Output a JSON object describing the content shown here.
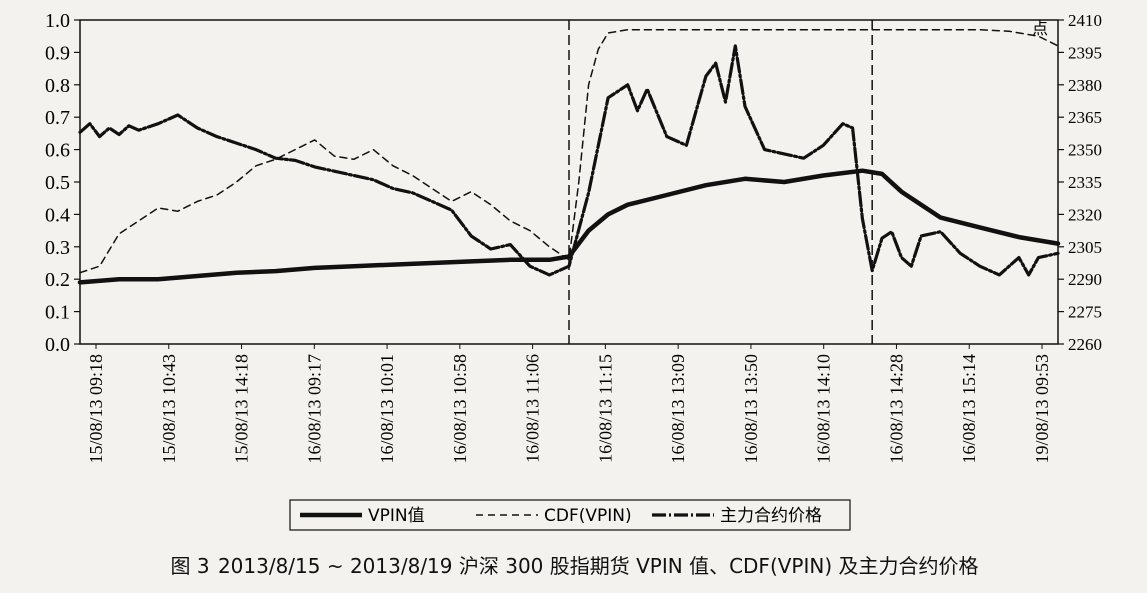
{
  "chart_data": {
    "type": "line",
    "caption": {
      "fig_no": "图 3",
      "text": "2013/8/15 ~ 2013/8/19 沪深 300 股指期货 VPIN 值、CDF(VPIN) 及主力合约价格"
    },
    "left_axis": {
      "ylim": [
        0.0,
        1.0
      ],
      "ticks": [
        "0.0",
        "0.1",
        "0.2",
        "0.3",
        "0.4",
        "0.5",
        "0.6",
        "0.7",
        "0.8",
        "0.9",
        "1.0"
      ]
    },
    "right_axis": {
      "unit": "点",
      "ylim": [
        2260,
        2410
      ],
      "ticks": [
        "2260",
        "2275",
        "2290",
        "2305",
        "2320",
        "2335",
        "2350",
        "2365",
        "2380",
        "2395",
        "2410"
      ]
    },
    "x_tick_labels": [
      "15/08/13 09:18",
      "15/08/13 10:43",
      "15/08/13 14:18",
      "16/08/13 09:17",
      "16/08/13 10:01",
      "16/08/13 10:58",
      "16/08/13 11:06",
      "16/08/13 11:15",
      "16/08/13 13:09",
      "16/08/13 13:50",
      "16/08/13 14:10",
      "16/08/13 14:28",
      "16/08/13 15:14",
      "19/08/13 09:53"
    ],
    "x_range": [
      0,
      100
    ],
    "vlines": [
      50,
      81
    ],
    "legend": {
      "position": "bottom-center",
      "entries": [
        "VPIN值",
        "CDF(VPIN)",
        "主力合约价格"
      ]
    },
    "series": [
      {
        "name": "VPIN值",
        "axis": "left",
        "style": "solid-thick",
        "x": [
          0,
          4,
          8,
          12,
          16,
          20,
          24,
          28,
          32,
          36,
          40,
          44,
          48,
          50,
          52,
          54,
          56,
          60,
          64,
          68,
          72,
          76,
          80,
          82,
          84,
          88,
          92,
          96,
          100
        ],
        "y": [
          0.19,
          0.2,
          0.2,
          0.21,
          0.22,
          0.225,
          0.235,
          0.24,
          0.245,
          0.25,
          0.255,
          0.26,
          0.26,
          0.27,
          0.35,
          0.4,
          0.43,
          0.46,
          0.49,
          0.51,
          0.5,
          0.52,
          0.535,
          0.525,
          0.47,
          0.39,
          0.36,
          0.33,
          0.31
        ]
      },
      {
        "name": "CDF(VPIN)",
        "axis": "left",
        "style": "dashed",
        "x": [
          0,
          2,
          4,
          6,
          8,
          10,
          12,
          14,
          16,
          18,
          20,
          22,
          24,
          26,
          28,
          30,
          32,
          34,
          36,
          38,
          40,
          42,
          44,
          46,
          48,
          50,
          51,
          52,
          53,
          54,
          56,
          60,
          70,
          80,
          88,
          92,
          95,
          98,
          100
        ],
        "y": [
          0.22,
          0.24,
          0.34,
          0.38,
          0.42,
          0.41,
          0.44,
          0.46,
          0.5,
          0.55,
          0.57,
          0.6,
          0.63,
          0.58,
          0.57,
          0.6,
          0.55,
          0.52,
          0.48,
          0.44,
          0.47,
          0.43,
          0.38,
          0.35,
          0.3,
          0.26,
          0.5,
          0.8,
          0.91,
          0.96,
          0.97,
          0.97,
          0.97,
          0.97,
          0.97,
          0.97,
          0.965,
          0.95,
          0.92
        ]
      },
      {
        "name": "主力合约价格",
        "axis": "right",
        "style": "dot-dash",
        "x": [
          0,
          1,
          2,
          3,
          4,
          5,
          6,
          8,
          10,
          12,
          14,
          16,
          18,
          20,
          22,
          24,
          26,
          28,
          30,
          32,
          34,
          36,
          38,
          40,
          42,
          44,
          46,
          48,
          50,
          52,
          54,
          56,
          57,
          58,
          60,
          62,
          64,
          65,
          66,
          67,
          68,
          70,
          72,
          74,
          76,
          78,
          79,
          80,
          81,
          82,
          83,
          84,
          85,
          86,
          88,
          90,
          92,
          94,
          96,
          97,
          98,
          100
        ],
        "x_note": "",
        "y": [
          2358,
          2362,
          2356,
          2360,
          2357,
          2361,
          2359,
          2362,
          2366,
          2360,
          2356,
          2353,
          2350,
          2346,
          2345,
          2342,
          2340,
          2338,
          2336,
          2332,
          2330,
          2326,
          2322,
          2310,
          2304,
          2306,
          2296,
          2292,
          2296,
          2330,
          2374,
          2380,
          2368,
          2378,
          2356,
          2352,
          2384,
          2390,
          2372,
          2398,
          2370,
          2350,
          2348,
          2346,
          2352,
          2362,
          2360,
          2318,
          2294,
          2309,
          2312,
          2300,
          2296,
          2310,
          2312,
          2302,
          2296,
          2292,
          2300,
          2292,
          2300,
          2302
        ]
      }
    ]
  }
}
